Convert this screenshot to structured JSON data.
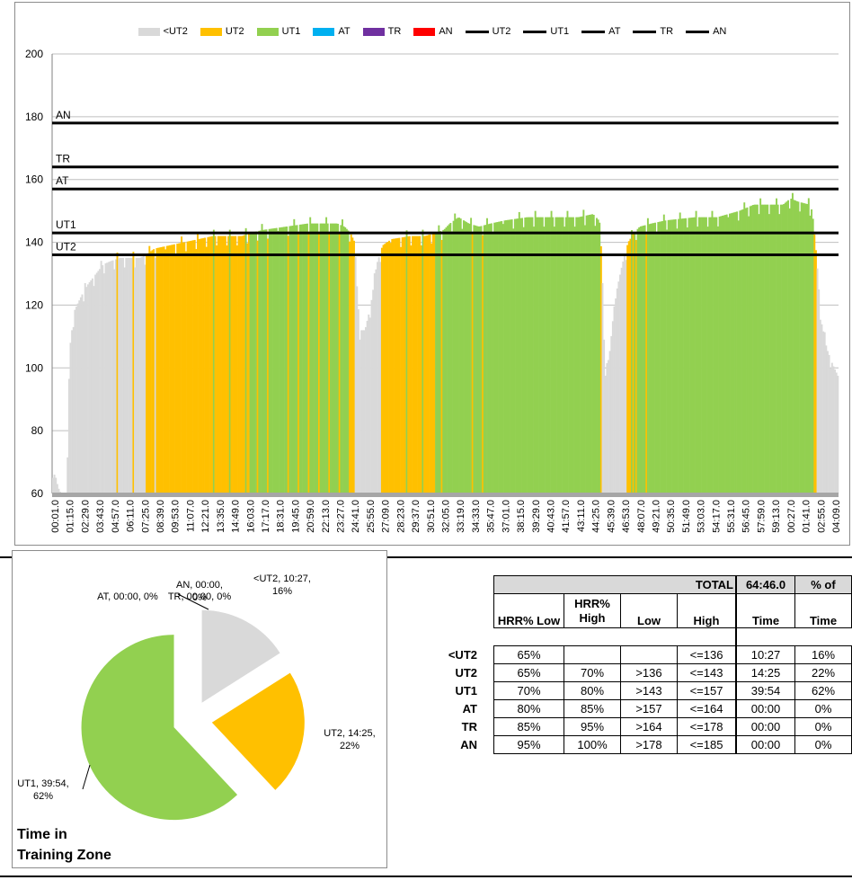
{
  "legend": [
    {
      "label": "<UT2",
      "kind": "area",
      "color": "#d9d9d9"
    },
    {
      "label": "UT2",
      "kind": "area",
      "color": "#ffc000"
    },
    {
      "label": "UT1",
      "kind": "area",
      "color": "#92d050"
    },
    {
      "label": "AT",
      "kind": "area",
      "color": "#00b0f0"
    },
    {
      "label": "TR",
      "kind": "area",
      "color": "#7030a0"
    },
    {
      "label": "AN",
      "kind": "area",
      "color": "#ff0000"
    },
    {
      "label": "UT2",
      "kind": "line",
      "color": "#000000"
    },
    {
      "label": "UT1",
      "kind": "line",
      "color": "#000000"
    },
    {
      "label": "AT",
      "kind": "line",
      "color": "#000000"
    },
    {
      "label": "TR",
      "kind": "line",
      "color": "#000000"
    },
    {
      "label": "AN",
      "kind": "line",
      "color": "#000000"
    }
  ],
  "chart_data": [
    {
      "type": "area",
      "ylim": [
        60,
        200
      ],
      "yticks": [
        60,
        80,
        100,
        120,
        140,
        160,
        180,
        200
      ],
      "grid": true,
      "x_tick_labels": [
        "00:01.0",
        "01:15.0",
        "02:29.0",
        "03:43.0",
        "04:57.0",
        "06:11.0",
        "07:25.0",
        "08:39.0",
        "09:53.0",
        "11:07.0",
        "12:21.0",
        "13:35.0",
        "14:49.0",
        "16:03.0",
        "17:17.0",
        "18:31.0",
        "19:45.0",
        "20:59.0",
        "22:13.0",
        "23:27.0",
        "24:41.0",
        "25:55.0",
        "27:09.0",
        "28:23.0",
        "29:37.0",
        "30:51.0",
        "32:05.0",
        "33:19.0",
        "34:33.0",
        "35:47.0",
        "37:01.0",
        "38:15.0",
        "39:29.0",
        "40:43.0",
        "41:57.0",
        "43:11.0",
        "44:25.0",
        "45:39.0",
        "46:53.0",
        "48:07.0",
        "49:21.0",
        "50:35.0",
        "51:49.0",
        "53:03.0",
        "54:17.0",
        "55:31.0",
        "56:45.0",
        "57:59.0",
        "59:13.0",
        "00:27.0",
        "01:41.0",
        "02:55.0",
        "04:09.0"
      ],
      "zone_lines": [
        {
          "name": "UT2",
          "value": 136
        },
        {
          "name": "UT1",
          "value": 143
        },
        {
          "name": "AT",
          "value": 157
        },
        {
          "name": "TR",
          "value": 164
        },
        {
          "name": "AN",
          "value": 178
        }
      ],
      "heart_rate_profile": [
        {
          "x": 0,
          "y": 66
        },
        {
          "x": 2,
          "y": 66
        },
        {
          "x": 4,
          "y": 62
        },
        {
          "x": 6,
          "y": 60
        },
        {
          "x": 10,
          "y": 60
        },
        {
          "x": 12,
          "y": 106
        },
        {
          "x": 15,
          "y": 118
        },
        {
          "x": 20,
          "y": 123
        },
        {
          "x": 25,
          "y": 127
        },
        {
          "x": 30,
          "y": 130
        },
        {
          "x": 35,
          "y": 133
        },
        {
          "x": 40,
          "y": 134
        },
        {
          "x": 46,
          "y": 135
        },
        {
          "x": 55,
          "y": 135
        },
        {
          "x": 60,
          "y": 135
        },
        {
          "x": 64,
          "y": 136
        },
        {
          "x": 70,
          "y": 138
        },
        {
          "x": 80,
          "y": 139
        },
        {
          "x": 90,
          "y": 140
        },
        {
          "x": 100,
          "y": 141
        },
        {
          "x": 110,
          "y": 142
        },
        {
          "x": 130,
          "y": 142
        },
        {
          "x": 135,
          "y": 143
        },
        {
          "x": 145,
          "y": 144
        },
        {
          "x": 160,
          "y": 145
        },
        {
          "x": 175,
          "y": 146
        },
        {
          "x": 195,
          "y": 146
        },
        {
          "x": 200,
          "y": 145
        },
        {
          "x": 204,
          "y": 143
        },
        {
          "x": 207,
          "y": 140
        },
        {
          "x": 210,
          "y": 112
        },
        {
          "x": 214,
          "y": 112
        },
        {
          "x": 218,
          "y": 120
        },
        {
          "x": 222,
          "y": 133
        },
        {
          "x": 226,
          "y": 139
        },
        {
          "x": 232,
          "y": 141
        },
        {
          "x": 245,
          "y": 142
        },
        {
          "x": 255,
          "y": 142
        },
        {
          "x": 262,
          "y": 143
        },
        {
          "x": 268,
          "y": 144
        },
        {
          "x": 272,
          "y": 146
        },
        {
          "x": 278,
          "y": 148
        },
        {
          "x": 285,
          "y": 146
        },
        {
          "x": 292,
          "y": 145
        },
        {
          "x": 300,
          "y": 146
        },
        {
          "x": 310,
          "y": 147
        },
        {
          "x": 325,
          "y": 148
        },
        {
          "x": 345,
          "y": 148
        },
        {
          "x": 360,
          "y": 148
        },
        {
          "x": 370,
          "y": 149
        },
        {
          "x": 374,
          "y": 147
        },
        {
          "x": 376,
          "y": 136
        },
        {
          "x": 378,
          "y": 100
        },
        {
          "x": 381,
          "y": 103
        },
        {
          "x": 385,
          "y": 122
        },
        {
          "x": 390,
          "y": 133
        },
        {
          "x": 394,
          "y": 140
        },
        {
          "x": 398,
          "y": 143
        },
        {
          "x": 402,
          "y": 145
        },
        {
          "x": 410,
          "y": 146
        },
        {
          "x": 420,
          "y": 147
        },
        {
          "x": 440,
          "y": 148
        },
        {
          "x": 455,
          "y": 148
        },
        {
          "x": 470,
          "y": 150
        },
        {
          "x": 480,
          "y": 152
        },
        {
          "x": 490,
          "y": 152
        },
        {
          "x": 500,
          "y": 152
        },
        {
          "x": 505,
          "y": 154
        },
        {
          "x": 510,
          "y": 153
        },
        {
          "x": 518,
          "y": 152
        },
        {
          "x": 520,
          "y": 150
        },
        {
          "x": 523,
          "y": 135
        },
        {
          "x": 526,
          "y": 115
        },
        {
          "x": 530,
          "y": 106
        },
        {
          "x": 534,
          "y": 101
        },
        {
          "x": 538,
          "y": 97
        }
      ],
      "x_max": 538
    },
    {
      "type": "pie",
      "title": "Time in\nTraining Zone",
      "slices": [
        {
          "zone": "<UT2",
          "time": "10:27",
          "percent": 16,
          "color": "#d9d9d9",
          "label": "<UT2, 10:27,\n16%"
        },
        {
          "zone": "UT2",
          "time": "14:25",
          "percent": 22,
          "color": "#ffc000",
          "label": "UT2, 14:25,\n22%"
        },
        {
          "zone": "UT1",
          "time": "39:54",
          "percent": 62,
          "color": "#92d050",
          "label": "UT1, 39:54,\n62%"
        },
        {
          "zone": "AT",
          "time": "00:00",
          "percent": 0,
          "color": "#00b0f0",
          "label": "AT, 00:00, 0%"
        },
        {
          "zone": "TR",
          "time": "00:00",
          "percent": 0,
          "color": "#7030a0",
          "label": "TR, 00:00, 0%"
        },
        {
          "zone": "AN",
          "time": "00:00",
          "percent": 0,
          "color": "#ff0000",
          "label": "AN, 00:00,\n0%"
        }
      ]
    }
  ],
  "table": {
    "total_label": "TOTAL",
    "total_time": "64:46.0",
    "pct_of": "% of",
    "headers": [
      "HRR% Low",
      "HRR%\nHigh",
      "Low",
      "High",
      "Time",
      "Time"
    ],
    "rows": [
      {
        "zone": "<UT2",
        "hrr_low": "65%",
        "hrr_high": "",
        "low": "",
        "high": "<=136",
        "time": "10:27",
        "pct": "16%"
      },
      {
        "zone": "UT2",
        "hrr_low": "65%",
        "hrr_high": "70%",
        "low": ">136",
        "high": "<=143",
        "time": "14:25",
        "pct": "22%"
      },
      {
        "zone": "UT1",
        "hrr_low": "70%",
        "hrr_high": "80%",
        "low": ">143",
        "high": "<=157",
        "time": "39:54",
        "pct": "62%"
      },
      {
        "zone": "AT",
        "hrr_low": "80%",
        "hrr_high": "85%",
        "low": ">157",
        "high": "<=164",
        "time": "00:00",
        "pct": "0%"
      },
      {
        "zone": "TR",
        "hrr_low": "85%",
        "hrr_high": "95%",
        "low": ">164",
        "high": "<=178",
        "time": "00:00",
        "pct": "0%"
      },
      {
        "zone": "AN",
        "hrr_low": "95%",
        "hrr_high": "100%",
        "low": ">178",
        "high": "<=185",
        "time": "00:00",
        "pct": "0%"
      }
    ]
  }
}
